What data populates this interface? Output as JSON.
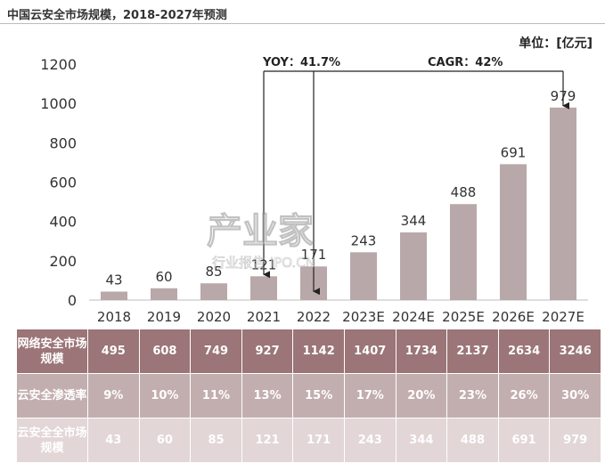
{
  "title": "中国云安全市场规模，2018-2027年预测",
  "unit_label": "单位：[亿元]",
  "chart_data": {
    "type": "bar",
    "categories": [
      "2018",
      "2019",
      "2020",
      "2021",
      "2022",
      "2023E",
      "2024E",
      "2025E",
      "2026E",
      "2027E"
    ],
    "values": [
      43,
      60,
      85,
      121,
      171,
      243,
      344,
      488,
      691,
      979
    ],
    "yticks": [
      "0",
      "200",
      "400",
      "600",
      "800",
      "1000",
      "1200"
    ],
    "ylim": [
      0,
      1200
    ],
    "bar_color": "#b9a8a9",
    "annotations": {
      "yoy": "YOY：41.7%",
      "cagr": "CAGR：42%"
    }
  },
  "table": {
    "rows": [
      {
        "label": "网络安全市场规模",
        "values": [
          "495",
          "608",
          "749",
          "927",
          "1142",
          "1407",
          "1734",
          "2137",
          "2634",
          "3246"
        ]
      },
      {
        "label": "云安全渗透率",
        "values": [
          "9%",
          "10%",
          "11%",
          "13%",
          "15%",
          "17%",
          "20%",
          "23%",
          "26%",
          "30%"
        ]
      },
      {
        "label": "云安全全市场规模",
        "values": [
          "43",
          "60",
          "85",
          "121",
          "171",
          "243",
          "344",
          "488",
          "691",
          "979"
        ]
      }
    ]
  },
  "watermark": {
    "main": "产业家",
    "sub": "行业报告 IPO.CN"
  }
}
